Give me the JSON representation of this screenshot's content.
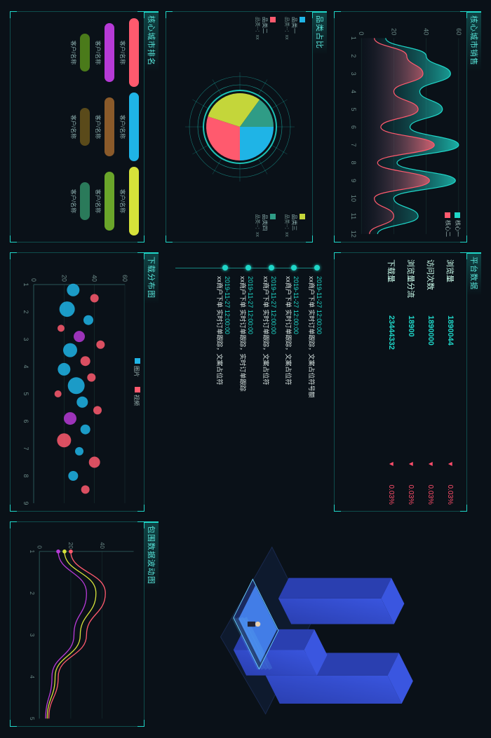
{
  "colors": {
    "bg": "#0a1118",
    "accent": "#1fd6c8",
    "frame": "rgba(31,214,200,0.3)",
    "danger": "#ff4d6a"
  },
  "area_chart": {
    "title": "核心城市销售",
    "type": "area",
    "ylim": [
      0,
      60
    ],
    "yticks": [
      0,
      20,
      40,
      60
    ],
    "xticks": [
      1,
      2,
      3,
      4,
      5,
      6,
      7,
      8,
      9,
      10,
      11,
      12
    ],
    "series": [
      {
        "name": "核心一",
        "color": "#1fd6c8",
        "fill_to": "#0e3b46",
        "values": [
          15,
          40,
          55,
          36,
          50,
          30,
          60,
          22,
          58,
          20,
          35,
          10
        ]
      },
      {
        "name": "核心二",
        "color": "#ff5a6e",
        "fill_to": "#2a1230",
        "values": [
          8,
          28,
          38,
          20,
          35,
          12,
          45,
          10,
          42,
          8,
          20,
          5
        ]
      }
    ],
    "axis_color": "#466",
    "tick_fontsize": 9
  },
  "stats": {
    "title": "平台数据",
    "rows": [
      {
        "label": "浏览量",
        "value": "1890044",
        "pct": "0.03%"
      },
      {
        "label": "访问次数",
        "value": "1890000",
        "pct": "0.03%"
      },
      {
        "label": "浏览量分流",
        "value": "18900",
        "pct": "0.03%"
      },
      {
        "label": "下载量",
        "value": "23444332",
        "pct": "0.03%"
      }
    ]
  },
  "pie": {
    "title": "品类占比",
    "type": "pie",
    "ring_color": "#1fd6c8",
    "slices": [
      {
        "name": "品类一",
        "value": "xx",
        "pct": 25,
        "color": "#1fb4e6"
      },
      {
        "name": "品类二",
        "value": "xx",
        "pct": 30,
        "color": "#ff5a6e"
      },
      {
        "name": "品类三",
        "value": "xx",
        "pct": 30,
        "color": "#c4d63a"
      },
      {
        "name": "品类四",
        "value": "xx",
        "pct": 15,
        "color": "#2f9c86"
      }
    ]
  },
  "feed": {
    "items": [
      {
        "ts": "2019-11-27  12:00:00",
        "tx": "xx商户下单 实时订单跟踪，文案占位符号额"
      },
      {
        "ts": "2019-11-27  12:00:00",
        "tx": "xx商户下单 实时订单跟踪，文案占位符"
      },
      {
        "ts": "2019-11-27  12:00:00",
        "tx": "xx商户下单 实时订单跟踪，文案占位符"
      },
      {
        "ts": "2019-11-27  12:00:00",
        "tx": "xx商户下单 实时订单跟踪，实时订单跟踪"
      },
      {
        "ts": "2019-11-27  12:00:00",
        "tx": "xx商户下单 实时订单跟踪，文案占位符"
      }
    ]
  },
  "ranking": {
    "title": "核心城市排名",
    "rows": [
      [
        {
          "label": "客户/名称",
          "color": "#ff5a6e",
          "w": 1.0
        },
        {
          "label": "客户/名称",
          "color": "#1fb4e6",
          "w": 1.0
        },
        {
          "label": "客户/名称",
          "color": "#d6e23a",
          "w": 1.0
        }
      ],
      [
        {
          "label": "客户/名称",
          "color": "#b63ad6",
          "w": 0.85
        },
        {
          "label": "客户/名称",
          "color": "#8a5a2a",
          "w": 0.85
        },
        {
          "label": "客户/名称",
          "color": "#6aa52a",
          "w": 0.85
        }
      ],
      [
        {
          "label": "客户/名称",
          "color": "#4a7a1a",
          "w": 0.55
        },
        {
          "label": "客户/名称",
          "color": "#5a4a1a",
          "w": 0.55
        },
        {
          "label": "客户/名称",
          "color": "#2a7a5a",
          "w": 0.55
        }
      ]
    ]
  },
  "bubble": {
    "title": "下载分布图",
    "type": "scatter",
    "ylim": [
      0,
      60
    ],
    "yticks": [
      0,
      20,
      40,
      60
    ],
    "xlim": [
      1,
      9
    ],
    "xticks": [
      1,
      2,
      3,
      4,
      5,
      6,
      7,
      8,
      9
    ],
    "legend": [
      {
        "name": "图片",
        "color": "#1fb4e6"
      },
      {
        "name": "视频",
        "color": "#ff5a6e"
      }
    ],
    "points": [
      {
        "x": 1.2,
        "y": 26,
        "r": 9,
        "c": "#1fb4e6"
      },
      {
        "x": 1.5,
        "y": 40,
        "r": 6,
        "c": "#ff5a6e"
      },
      {
        "x": 1.9,
        "y": 22,
        "r": 11,
        "c": "#1fb4e6"
      },
      {
        "x": 2.3,
        "y": 36,
        "r": 7,
        "c": "#1fb4e6"
      },
      {
        "x": 2.6,
        "y": 18,
        "r": 5,
        "c": "#ff5a6e"
      },
      {
        "x": 2.9,
        "y": 30,
        "r": 8,
        "c": "#b63ad6"
      },
      {
        "x": 3.2,
        "y": 44,
        "r": 6,
        "c": "#ff5a6e"
      },
      {
        "x": 3.4,
        "y": 24,
        "r": 10,
        "c": "#1fb4e6"
      },
      {
        "x": 3.8,
        "y": 34,
        "r": 7,
        "c": "#ff5a6e"
      },
      {
        "x": 4.1,
        "y": 20,
        "r": 9,
        "c": "#1fb4e6"
      },
      {
        "x": 4.4,
        "y": 38,
        "r": 6,
        "c": "#ff5a6e"
      },
      {
        "x": 4.7,
        "y": 28,
        "r": 12,
        "c": "#1fb4e6"
      },
      {
        "x": 5.0,
        "y": 16,
        "r": 5,
        "c": "#ff5a6e"
      },
      {
        "x": 5.3,
        "y": 32,
        "r": 8,
        "c": "#1fb4e6"
      },
      {
        "x": 5.6,
        "y": 42,
        "r": 6,
        "c": "#ff5a6e"
      },
      {
        "x": 5.9,
        "y": 24,
        "r": 9,
        "c": "#b63ad6"
      },
      {
        "x": 6.3,
        "y": 34,
        "r": 7,
        "c": "#1fb4e6"
      },
      {
        "x": 6.7,
        "y": 20,
        "r": 10,
        "c": "#ff5a6e"
      },
      {
        "x": 7.1,
        "y": 30,
        "r": 6,
        "c": "#1fb4e6"
      },
      {
        "x": 7.5,
        "y": 40,
        "r": 8,
        "c": "#ff5a6e"
      },
      {
        "x": 8.0,
        "y": 26,
        "r": 7,
        "c": "#1fb4e6"
      },
      {
        "x": 8.5,
        "y": 34,
        "r": 6,
        "c": "#ff5a6e"
      }
    ]
  },
  "wave": {
    "title": "包围数据波动图",
    "type": "line",
    "ylim": [
      0,
      60
    ],
    "yticks": [
      0,
      20,
      40
    ],
    "xlim": [
      1,
      5
    ],
    "xticks": [
      1,
      2,
      3,
      4,
      5
    ],
    "series": [
      {
        "color": "#ff5a6e",
        "values": [
          20,
          42,
          30,
          12,
          6
        ]
      },
      {
        "color": "#d6e23a",
        "values": [
          16,
          36,
          26,
          10,
          5
        ]
      },
      {
        "color": "#b63ad6",
        "values": [
          12,
          30,
          22,
          8,
          4
        ]
      }
    ]
  },
  "illustration": {
    "floor": "#0e1a2e",
    "tower": "#2a3fb0",
    "tower_light": "#3a56e0",
    "screen": "#4a8cff",
    "glow": "#6ad0ff"
  }
}
